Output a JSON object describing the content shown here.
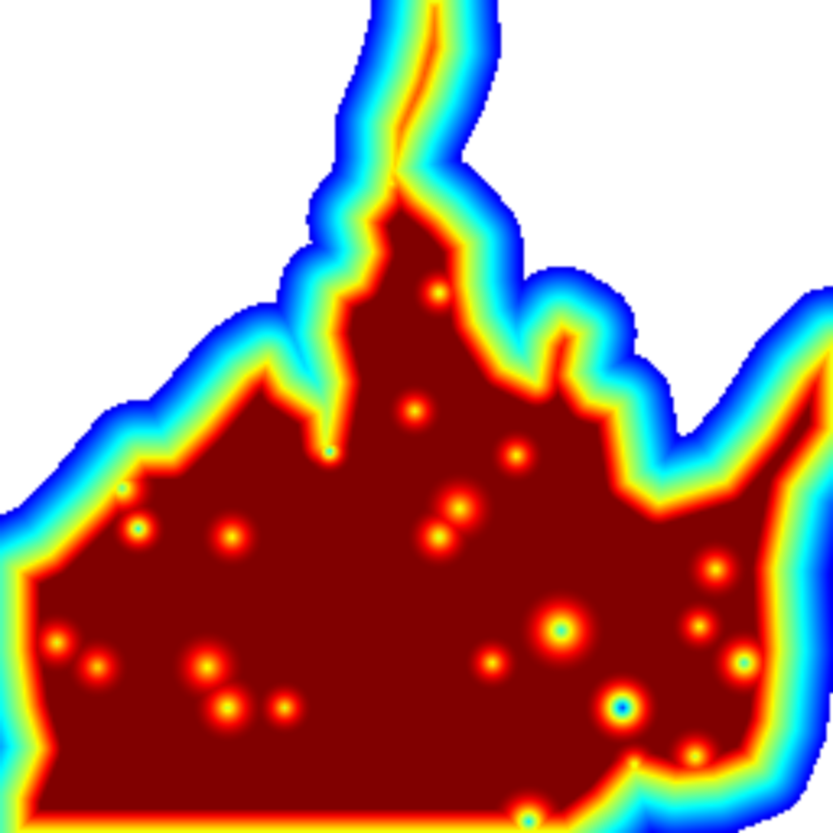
{
  "map": {
    "type": "density-heatmap",
    "colormap": "jet",
    "background_color": "#ffffff",
    "colormap_stops": [
      "#00007f",
      "#0000ff",
      "#00ffff",
      "#7fff7f",
      "#ffff00",
      "#ff7f00",
      "#ff0000"
    ],
    "saturated_color": "#ff0000",
    "labels_visible": false
  }
}
